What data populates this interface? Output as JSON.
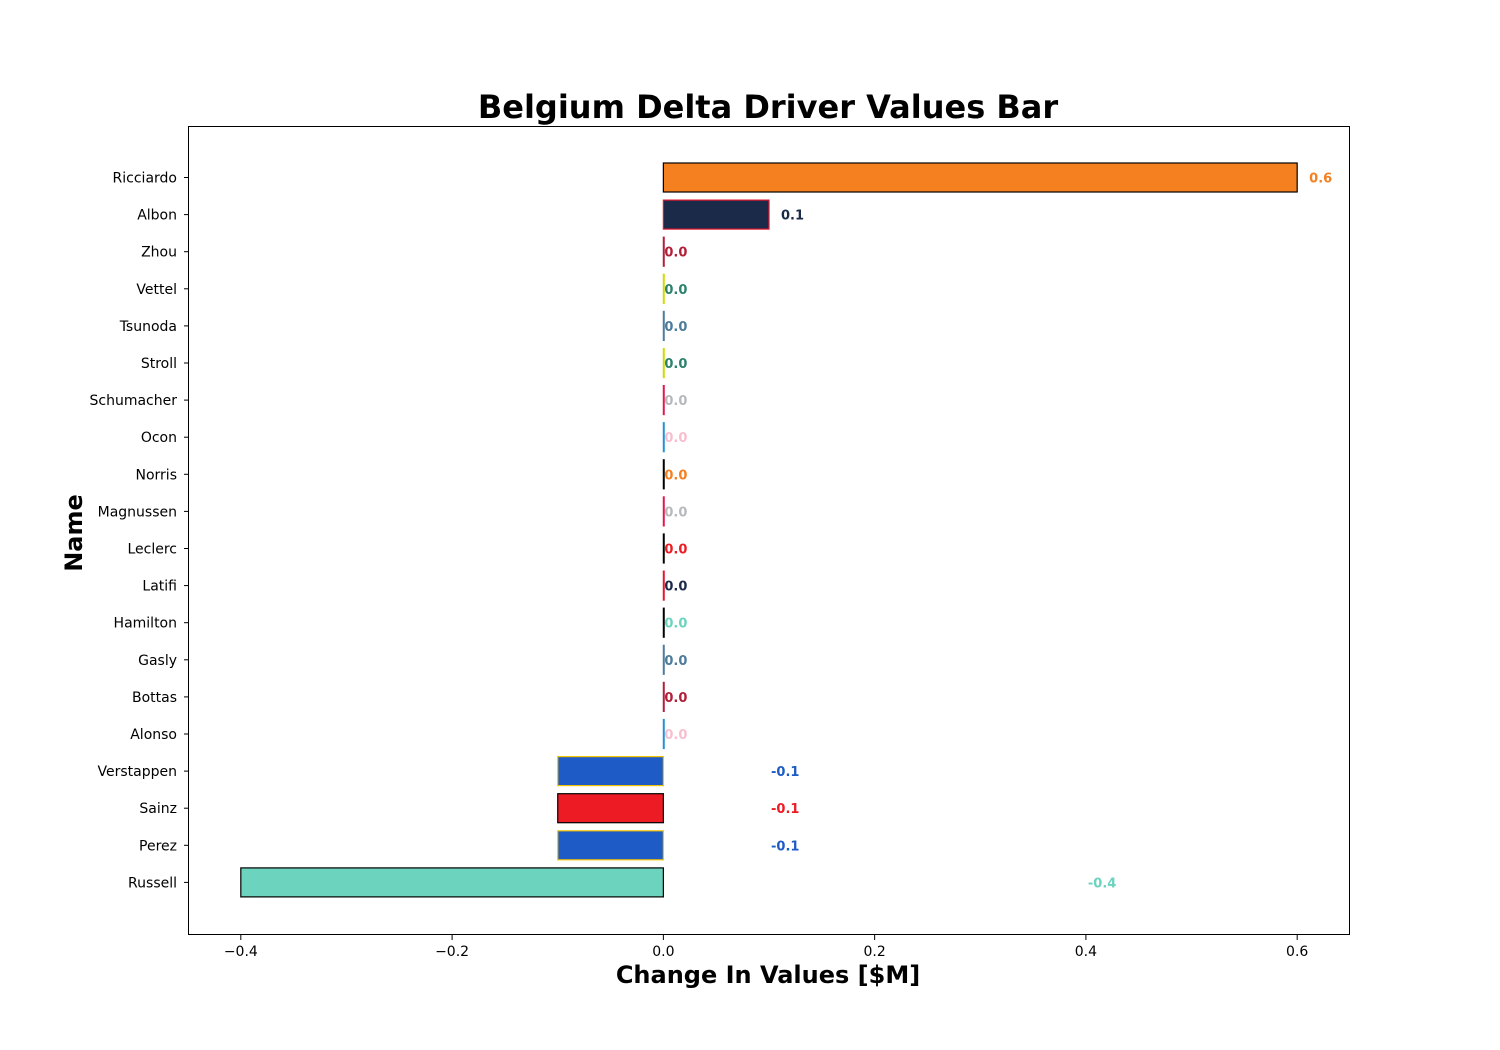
{
  "chart_data": {
    "type": "bar",
    "orientation": "horizontal",
    "title": "Belgium Delta Driver Values Bar",
    "xlabel": "Change In Values [$M]",
    "ylabel": "Name",
    "xlim": [
      -0.45,
      0.65
    ],
    "xticks": [
      -0.4,
      -0.2,
      0.0,
      0.2,
      0.4,
      0.6
    ],
    "xtick_labels": [
      "−0.4",
      "−0.2",
      "0.0",
      "0.2",
      "0.4",
      "0.6"
    ],
    "grid": false,
    "legend": "none",
    "bars": [
      {
        "name": "Ricciardo",
        "value": 0.6,
        "label": "0.6",
        "fill": "#F58020",
        "edge": "#000000",
        "label_color": "#F58020"
      },
      {
        "name": "Albon",
        "value": 0.1,
        "label": "0.1",
        "fill": "#1B2A49",
        "edge": "#E0172E",
        "label_color": "#1B2A49"
      },
      {
        "name": "Zhou",
        "value": 0.0,
        "label": "0.0",
        "fill": "#B12039",
        "edge": "#B12039",
        "label_color": "#B12039"
      },
      {
        "name": "Vettel",
        "value": 0.0,
        "label": "0.0",
        "fill": "#2D826D",
        "edge": "#CEDC00",
        "label_color": "#2D826D"
      },
      {
        "name": "Tsunoda",
        "value": 0.0,
        "label": "0.0",
        "fill": "#4E7C9B",
        "edge": "#4E7C9B",
        "label_color": "#4E7C9B"
      },
      {
        "name": "Stroll",
        "value": 0.0,
        "label": "0.0",
        "fill": "#2D826D",
        "edge": "#CEDC00",
        "label_color": "#2D826D"
      },
      {
        "name": "Schumacher",
        "value": 0.0,
        "label": "0.0",
        "fill": "#B6BABD",
        "edge": "#E0174E",
        "label_color": "#B6BABD"
      },
      {
        "name": "Ocon",
        "value": 0.0,
        "label": "0.0",
        "fill": "#F8BFCF",
        "edge": "#2293D1",
        "label_color": "#F8BFCF"
      },
      {
        "name": "Norris",
        "value": 0.0,
        "label": "0.0",
        "fill": "#F58020",
        "edge": "#000000",
        "label_color": "#F58020"
      },
      {
        "name": "Magnussen",
        "value": 0.0,
        "label": "0.0",
        "fill": "#B6BABD",
        "edge": "#E0174E",
        "label_color": "#B6BABD"
      },
      {
        "name": "Leclerc",
        "value": 0.0,
        "label": "0.0",
        "fill": "#ED1C24",
        "edge": "#000000",
        "label_color": "#ED1C24"
      },
      {
        "name": "Latifi",
        "value": 0.0,
        "label": "0.0",
        "fill": "#1B2A49",
        "edge": "#E0172E",
        "label_color": "#1B2A49"
      },
      {
        "name": "Hamilton",
        "value": 0.0,
        "label": "0.0",
        "fill": "#6CD3BF",
        "edge": "#000000",
        "label_color": "#6CD3BF"
      },
      {
        "name": "Gasly",
        "value": 0.0,
        "label": "0.0",
        "fill": "#4E7C9B",
        "edge": "#4E7C9B",
        "label_color": "#4E7C9B"
      },
      {
        "name": "Bottas",
        "value": 0.0,
        "label": "0.0",
        "fill": "#B12039",
        "edge": "#B12039",
        "label_color": "#B12039"
      },
      {
        "name": "Alonso",
        "value": 0.0,
        "label": "0.0",
        "fill": "#F8BFCF",
        "edge": "#2293D1",
        "label_color": "#F8BFCF"
      },
      {
        "name": "Verstappen",
        "value": -0.1,
        "label": "-0.1",
        "fill": "#1E5BC6",
        "edge": "#F4C300",
        "label_color": "#1E5BC6"
      },
      {
        "name": "Sainz",
        "value": -0.1,
        "label": "-0.1",
        "fill": "#ED1C24",
        "edge": "#000000",
        "label_color": "#ED1C24"
      },
      {
        "name": "Perez",
        "value": -0.1,
        "label": "-0.1",
        "fill": "#1E5BC6",
        "edge": "#F4C300",
        "label_color": "#1E5BC6"
      },
      {
        "name": "Russell",
        "value": -0.4,
        "label": "-0.4",
        "fill": "#6CD3BF",
        "edge": "#000000",
        "label_color": "#6CD3BF"
      }
    ]
  }
}
